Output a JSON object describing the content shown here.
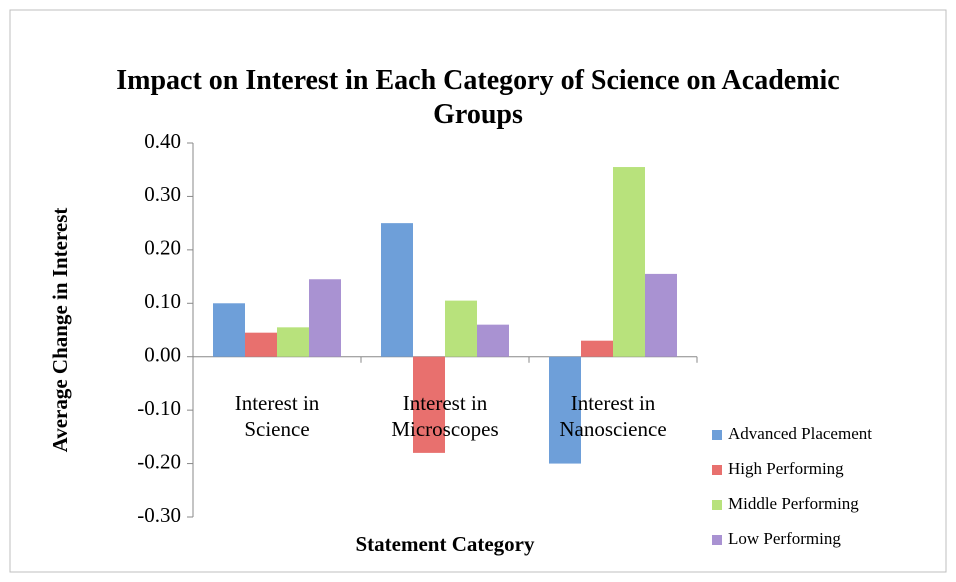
{
  "chart_data": {
    "type": "bar",
    "title": "Impact on Interest in Each Category of Science on Academic Groups",
    "x_label": "Statement Category",
    "y_label": "Average Change in Interest",
    "categories": [
      "Interest in Science",
      "Interest in Microscopes",
      "Interest in Nanoscience"
    ],
    "series": [
      {
        "name": "Advanced Placement",
        "color": "#6e9fd9",
        "values": [
          0.1,
          0.25,
          -0.2
        ]
      },
      {
        "name": "High Performing",
        "color": "#e8706e",
        "values": [
          0.045,
          -0.18,
          0.03
        ]
      },
      {
        "name": "Middle Performing",
        "color": "#b8e27c",
        "values": [
          0.055,
          0.105,
          0.355
        ]
      },
      {
        "name": "Low Performing",
        "color": "#a992d2",
        "values": [
          0.145,
          0.06,
          0.155
        ]
      }
    ],
    "ylim": [
      -0.3,
      0.4
    ],
    "yticks": [
      {
        "value": -0.3,
        "label": "-0.30"
      },
      {
        "value": -0.2,
        "label": "-0.20"
      },
      {
        "value": -0.1,
        "label": "-0.10"
      },
      {
        "value": 0,
        "label": "0.00"
      },
      {
        "value": 0.1,
        "label": "0.10"
      },
      {
        "value": 0.2,
        "label": "0.20"
      },
      {
        "value": 0.3,
        "label": "0.30"
      },
      {
        "value": 0.4,
        "label": "0.40"
      }
    ],
    "legend": "right"
  }
}
